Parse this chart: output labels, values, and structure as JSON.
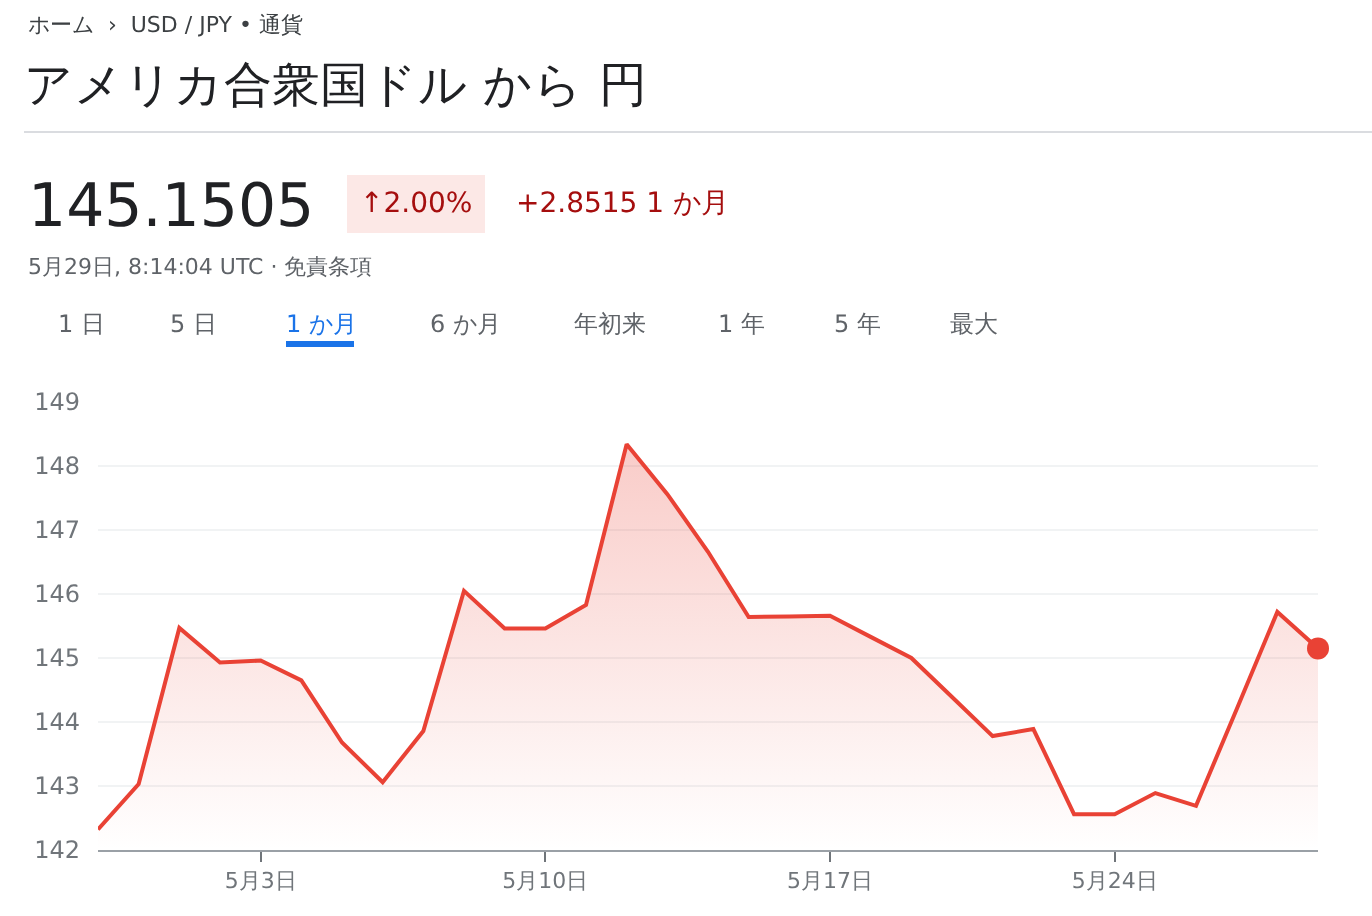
{
  "chart_data": {
    "type": "area",
    "title": "アメリカ合衆国ドル から 円",
    "subtitle": "ホーム  ›  USD / JPY • 通貨",
    "annotations": [
      "145.1505",
      "↑2.00%",
      "+2.8515 1 か月",
      "5月29日, 8:14:04 UTC · 免責条項",
      "1 日",
      "5 日",
      "1 か月",
      "6 か月",
      "年初来",
      "1 年",
      "5 年",
      "最大"
    ],
    "x": [
      "--04-29",
      "--04-30",
      "--05-01",
      "--05-02",
      "--05-03",
      "--05-04",
      "--05-05",
      "--05-06",
      "--05-07",
      "--05-08",
      "--05-09",
      "--05-10",
      "--05-11",
      "--05-12",
      "--05-13",
      "--05-14",
      "--05-15",
      "--05-16",
      "--05-17",
      "--05-18",
      "--05-19",
      "--05-20",
      "--05-21",
      "--05-22",
      "--05-23",
      "--05-24",
      "--05-25",
      "--05-26",
      "--05-27",
      "--05-28",
      "--05-29"
    ],
    "series": [
      {
        "color": "#e94235",
        "values": [
          142.32,
          143.03,
          145.47,
          144.93,
          144.96,
          144.65,
          143.68,
          143.06,
          143.86,
          146.05,
          145.46,
          145.46,
          145.83,
          148.34,
          147.56,
          146.66,
          145.64,
          145.65,
          145.66,
          145.33,
          145.0,
          144.39,
          143.78,
          143.89,
          142.56,
          142.56,
          142.89,
          142.69,
          144.2,
          145.72,
          145.15
        ]
      },
      {
        "type": "scatter",
        "marker": "circle",
        "color": "#e94235",
        "x": [
          "--05-29"
        ],
        "values": [
          145.15
        ]
      }
    ],
    "xlim": [
      "--04-29",
      "--05-29"
    ],
    "xticks": [
      {
        "value": "--05-03",
        "label": "5月3日"
      },
      {
        "value": "--05-10",
        "label": "5月10日"
      },
      {
        "value": "--05-17",
        "label": "5月17日"
      },
      {
        "value": "--05-24",
        "label": "5月24日"
      }
    ],
    "ylim": [
      142,
      149
    ],
    "yticks": [
      142,
      143,
      144,
      145,
      146,
      147,
      148,
      149
    ],
    "grid": "y",
    "marker": "none",
    "line_style": "solid"
  }
}
